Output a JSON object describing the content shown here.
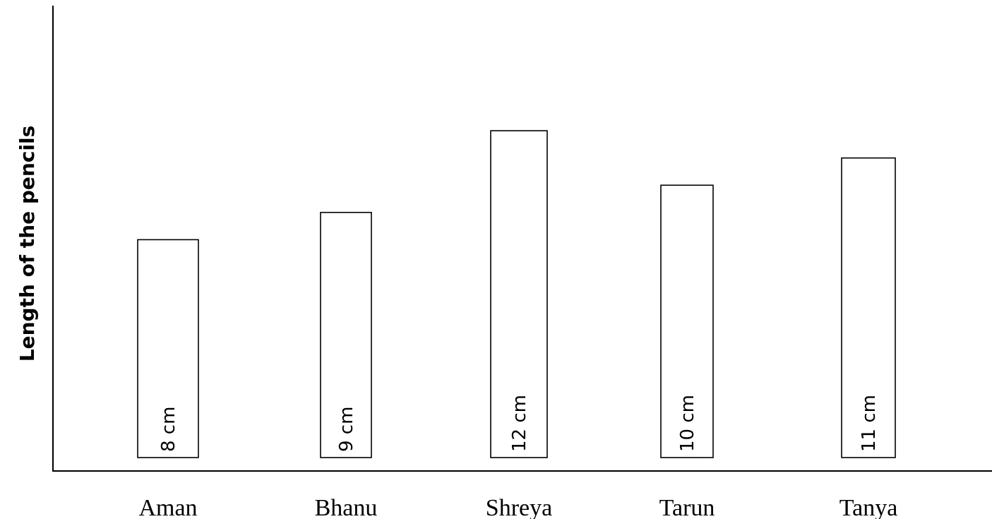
{
  "chart_data": {
    "type": "bar",
    "title": "",
    "xlabel": "",
    "ylabel": "Length of the pencils",
    "categories": [
      "Aman",
      "Bhanu",
      "Shreya",
      "Tarun",
      "Tanya"
    ],
    "values": [
      8,
      9,
      12,
      10,
      11
    ],
    "bar_labels": [
      "8 cm",
      "9 cm",
      "12 cm",
      "10 cm",
      "11 cm"
    ],
    "unit": "cm",
    "ylim": [
      0,
      16.8
    ],
    "grid": false,
    "y_ticks_shown": false,
    "bar_fill": "#ffffff",
    "bar_stroke": "#000000"
  }
}
